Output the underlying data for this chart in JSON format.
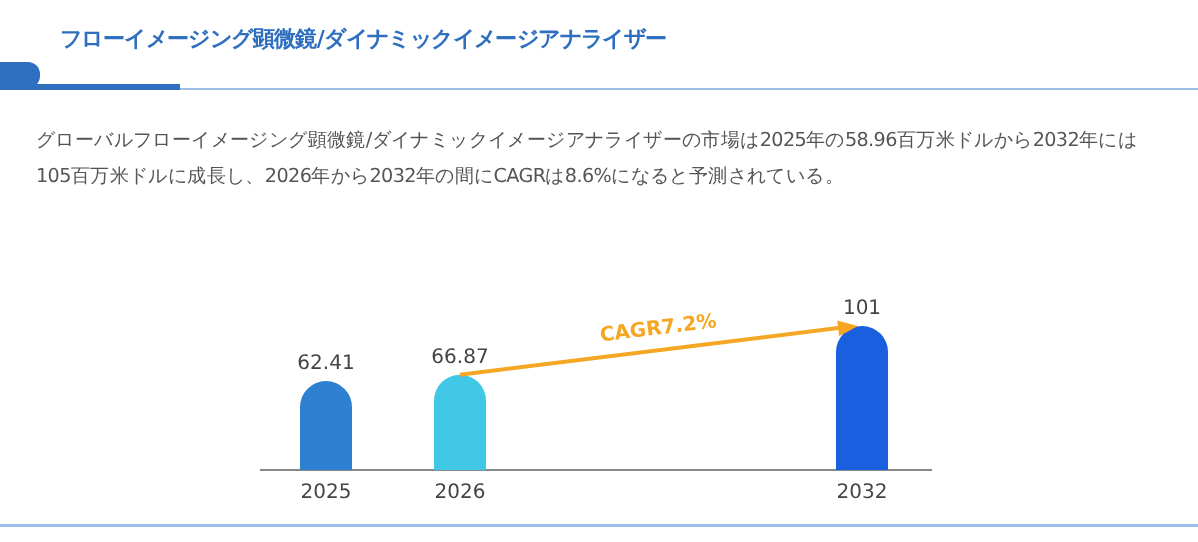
{
  "chart_data": {
    "type": "bar",
    "title": "フローイメージング顕微鏡/ダイナミックイメージアナライザー",
    "subtitle": "グローバルフローイメージング顕微鏡/ダイナミックイメージアナライザーの市場は2025年の58.96百万米ドルから2032年には105百万米ドルに成長し、2026年から2032年の間にCAGRは8.6%になると予測されている。",
    "categories": [
      "2025",
      "2026",
      null,
      null,
      "2032"
    ],
    "values": [
      62.41,
      66.87,
      null,
      null,
      101
    ],
    "colors": [
      "#2f80d1",
      "#40c8e6",
      null,
      null,
      "#1a5fe0"
    ],
    "data_labels": true,
    "annotations": [
      "CAGR7.2%"
    ]
  }
}
